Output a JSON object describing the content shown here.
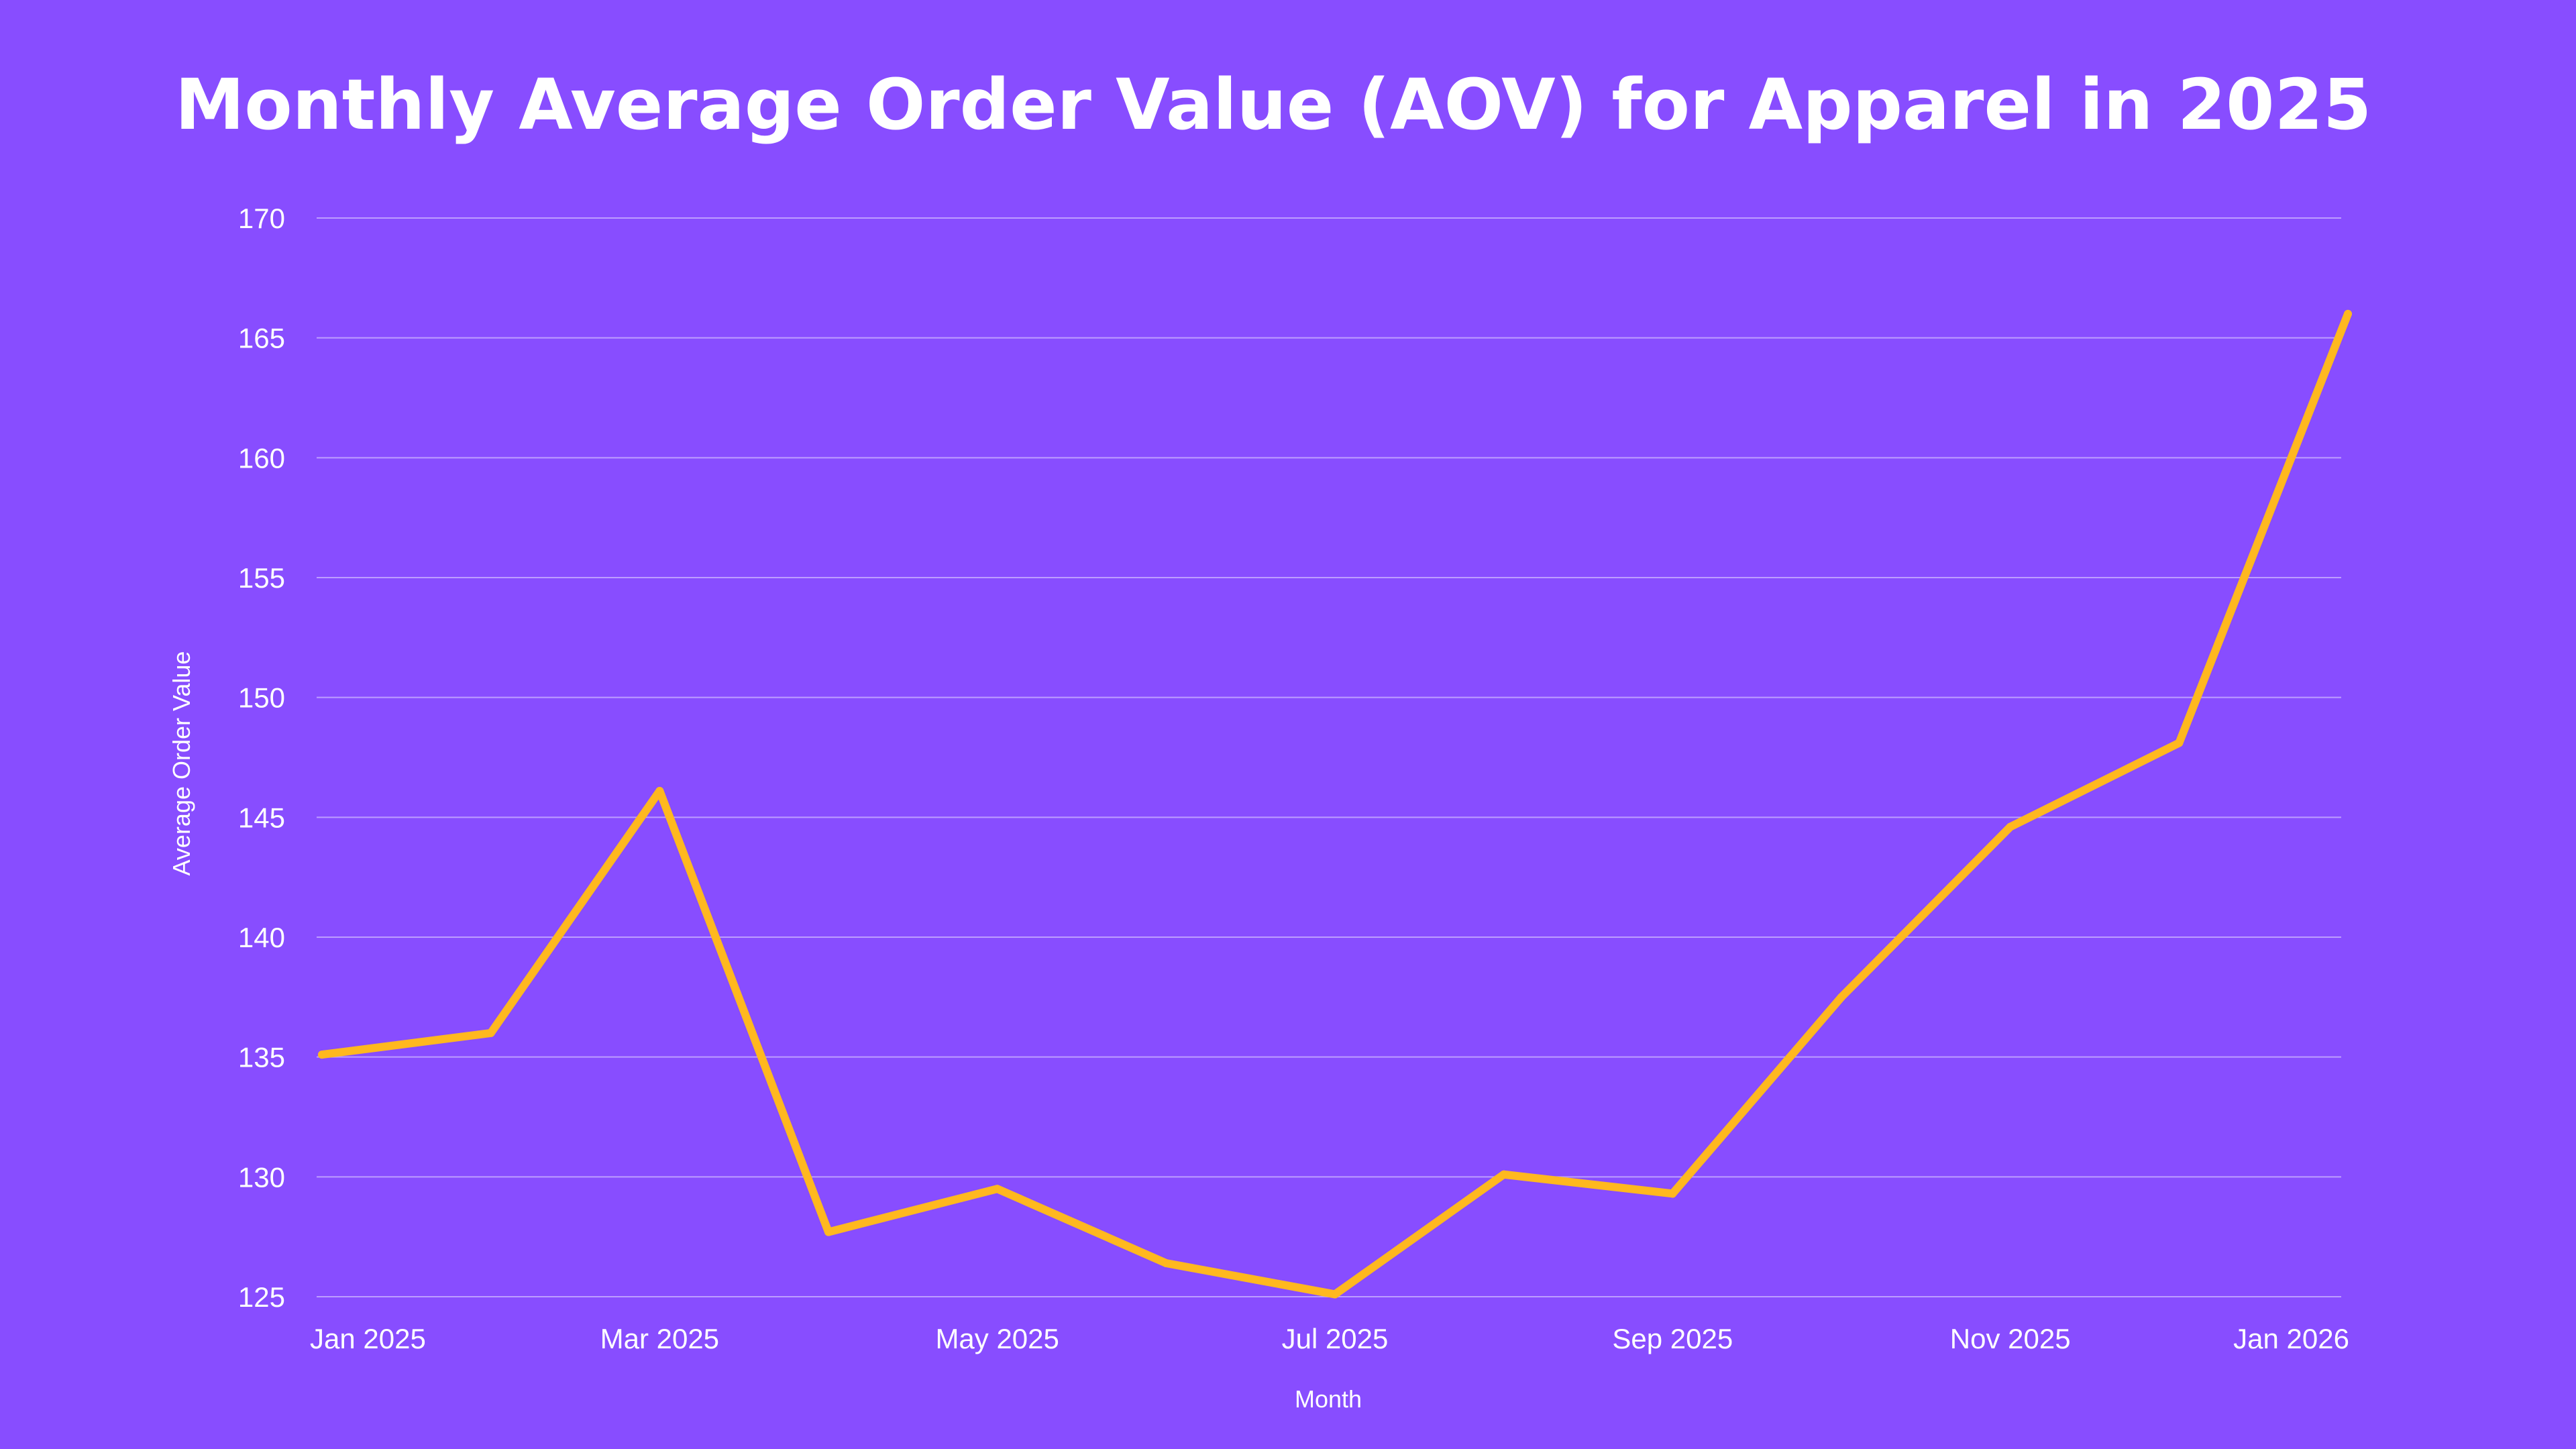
{
  "colors": {
    "background": "#884DFF",
    "line": "#FFB81F",
    "text": "#FFFFFF",
    "grid": "#FFFFFF"
  },
  "chart_data": {
    "type": "line",
    "title": "Monthly Average Order Value (AOV) for Apparel in 2025",
    "xlabel": "Month",
    "ylabel": "Average Order Value",
    "ylim": [
      125,
      170
    ],
    "yticks": [
      125,
      130,
      135,
      140,
      145,
      150,
      155,
      160,
      165,
      170
    ],
    "xticks": [
      {
        "label": "Jan 2025",
        "index": 0
      },
      {
        "label": "Mar 2025",
        "index": 2
      },
      {
        "label": "May 2025",
        "index": 4
      },
      {
        "label": "Jul 2025",
        "index": 6
      },
      {
        "label": "Sep 2025",
        "index": 8
      },
      {
        "label": "Nov 2025",
        "index": 10
      },
      {
        "label": "Jan 2026",
        "index": 12
      }
    ],
    "grid": true,
    "series": [
      {
        "name": "AOV",
        "x": [
          "Jan 2025",
          "Feb 2025",
          "Mar 2025",
          "Apr 2025",
          "May 2025",
          "Jun 2025",
          "Jul 2025",
          "Aug 2025",
          "Sep 2025",
          "Oct 2025",
          "Nov 2025",
          "Dec 2025",
          "Jan 2026"
        ],
        "values": [
          135.1,
          136.0,
          146.1,
          127.7,
          129.5,
          126.4,
          125.1,
          130.1,
          129.3,
          137.5,
          144.6,
          148.1,
          166.0
        ]
      }
    ]
  }
}
